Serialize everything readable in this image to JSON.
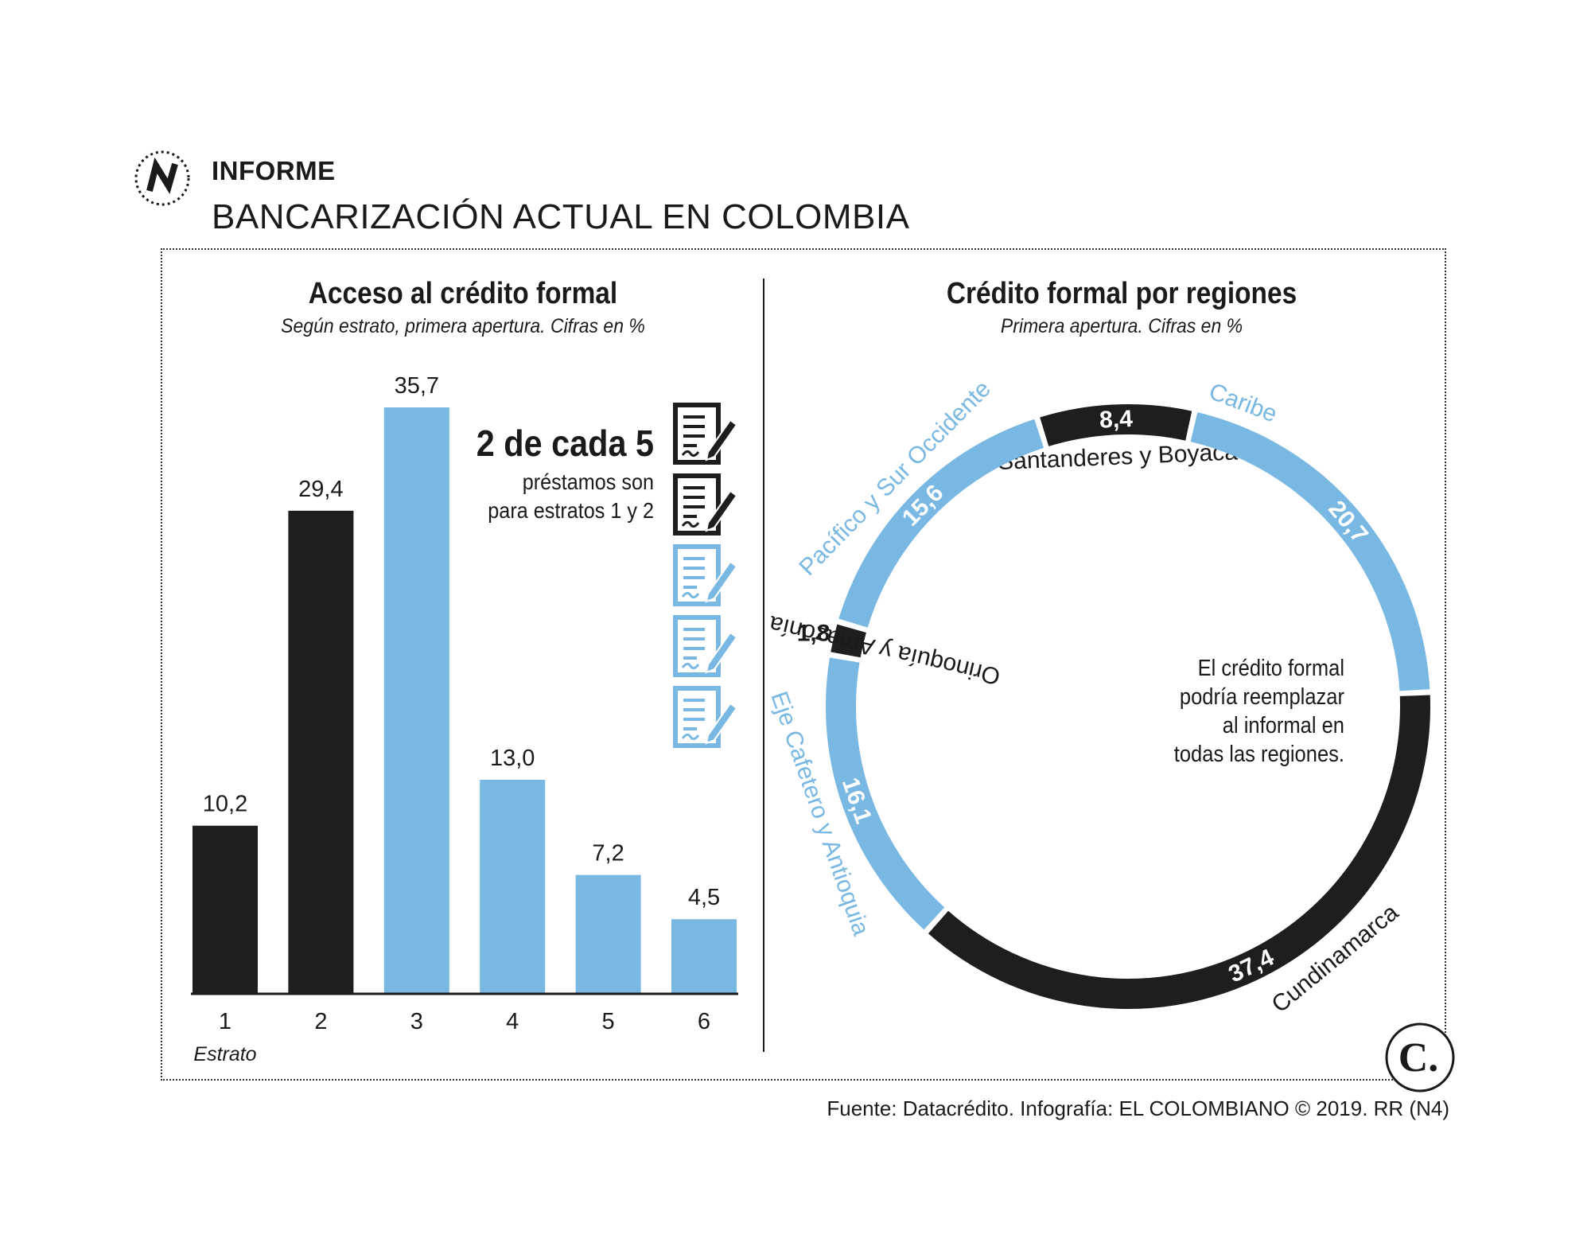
{
  "header": {
    "section": "INFORME",
    "title": "BANCARIZACIÓN ACTUAL EN COLOMBIA"
  },
  "left": {
    "title": "Acceso al crédito formal",
    "subtitle": "Según estrato, primera apertura. Cifras en %",
    "callout_big": "2 de cada 5",
    "callout_line1": "préstamos son",
    "callout_line2": "para estratos 1 y 2"
  },
  "right": {
    "title": "Crédito formal por regiones",
    "subtitle": "Primera apertura. Cifras en %",
    "note": [
      "El crédito formal",
      "podría reemplazar",
      "al informal en",
      "todas las regiones."
    ]
  },
  "footer": "Fuente: Datacrédito. Infografía: EL COLOMBIANO © 2019. RR (N4)",
  "colors": {
    "dark": "#1e1e1e",
    "light": "#79b8e3"
  },
  "icons": {
    "left": "document-pencil-icon",
    "logo_top": "n-logo-icon",
    "logo_bottom": "c-logo-icon"
  },
  "chart_data": [
    {
      "type": "bar",
      "title": "Acceso al crédito formal",
      "subtitle": "Según estrato, primera apertura. Cifras en %",
      "xlabel": "Estrato",
      "ylabel": "",
      "categories": [
        "1",
        "2",
        "3",
        "4",
        "5",
        "6"
      ],
      "labels": [
        "10,2",
        "29,4",
        "35,7",
        "13,0",
        "7,2",
        "4,5"
      ],
      "values": [
        10.2,
        29.4,
        35.7,
        13.0,
        7.2,
        4.5
      ],
      "bar_colors": [
        "#1e1e1e",
        "#1e1e1e",
        "#79b8e3",
        "#79b8e3",
        "#79b8e3",
        "#79b8e3"
      ],
      "ylim": [
        0,
        35.7
      ],
      "grid": false
    },
    {
      "type": "pie",
      "style": "ring",
      "title": "Crédito formal por regiones",
      "subtitle": "Primera apertura. Cifras en %",
      "slices": [
        {
          "name": "Santanderes y Boyacá",
          "label": "8,4",
          "value": 8.4,
          "color": "#1e1e1e"
        },
        {
          "name": "Caribe",
          "label": "20,7",
          "value": 20.7,
          "color": "#79b8e3"
        },
        {
          "name": "Cundinamarca",
          "label": "37,4",
          "value": 37.4,
          "color": "#1e1e1e"
        },
        {
          "name": "Eje Cafetero y Antioquia",
          "label": "16,1",
          "value": 16.1,
          "color": "#79b8e3"
        },
        {
          "name": "Orinoquía y Amazonía",
          "label": "1,8",
          "value": 1.8,
          "color": "#1e1e1e"
        },
        {
          "name": "Pacífico y Sur Occidente",
          "label": "15,6",
          "value": 15.6,
          "color": "#79b8e3"
        }
      ]
    }
  ]
}
